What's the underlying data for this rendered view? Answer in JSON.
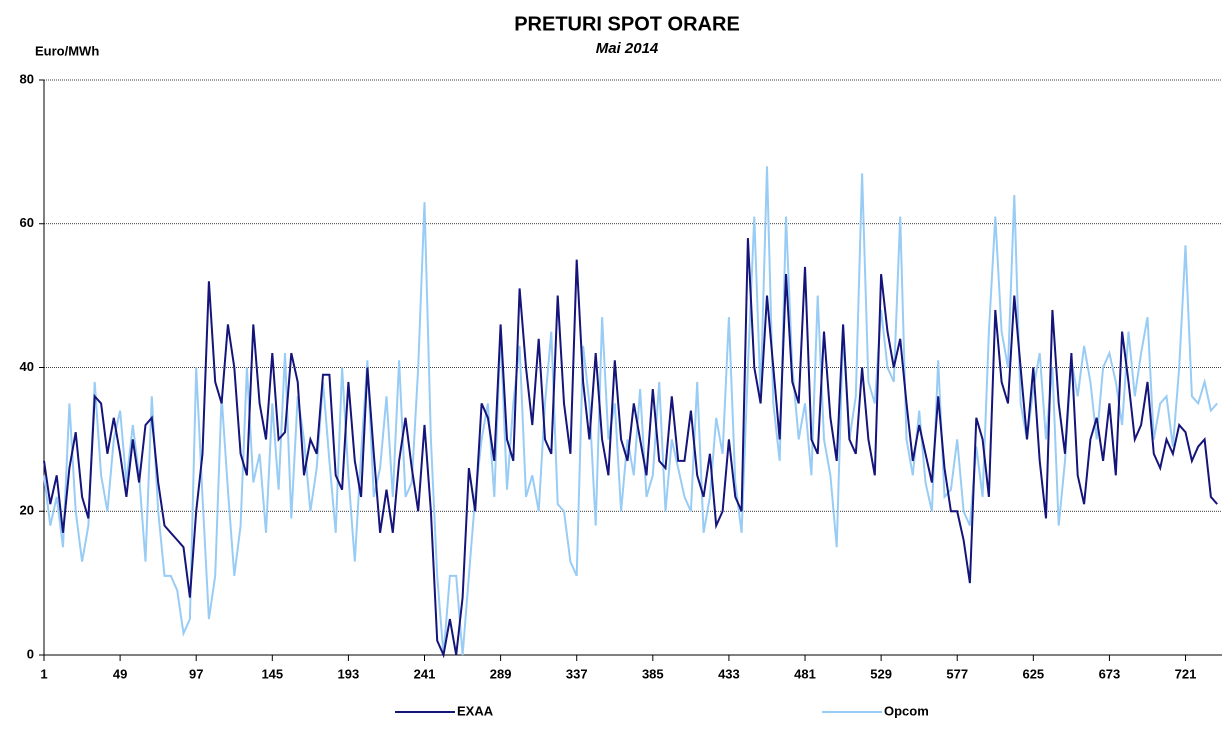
{
  "chart_data": {
    "type": "line",
    "title": "PRETURI SPOT ORARE",
    "subtitle": "Mai  2014",
    "y_label": "Euro/MWh",
    "x": [
      1,
      5,
      9,
      13,
      17,
      21,
      25,
      29,
      33,
      37,
      41,
      45,
      49,
      53,
      57,
      61,
      65,
      69,
      73,
      77,
      81,
      85,
      89,
      93,
      97,
      101,
      105,
      109,
      113,
      117,
      121,
      125,
      129,
      133,
      137,
      141,
      145,
      149,
      153,
      157,
      161,
      165,
      169,
      173,
      177,
      181,
      185,
      189,
      193,
      197,
      201,
      205,
      209,
      213,
      217,
      221,
      225,
      229,
      233,
      237,
      241,
      245,
      249,
      253,
      257,
      261,
      265,
      269,
      273,
      277,
      281,
      285,
      289,
      293,
      297,
      301,
      305,
      309,
      313,
      317,
      321,
      325,
      329,
      333,
      337,
      341,
      345,
      349,
      353,
      357,
      361,
      365,
      369,
      373,
      377,
      381,
      385,
      389,
      393,
      397,
      401,
      405,
      409,
      413,
      417,
      421,
      425,
      429,
      433,
      437,
      441,
      445,
      449,
      453,
      457,
      461,
      465,
      469,
      473,
      477,
      481,
      485,
      489,
      493,
      497,
      501,
      505,
      509,
      513,
      517,
      521,
      525,
      529,
      533,
      537,
      541,
      545,
      549,
      553,
      557,
      561,
      565,
      569,
      573,
      577,
      581,
      585,
      589,
      593,
      597,
      601,
      605,
      609,
      613,
      617,
      621,
      625,
      629,
      633,
      637,
      641,
      645,
      649,
      653,
      657,
      661,
      665,
      669,
      673,
      677,
      681,
      685,
      689,
      693,
      697,
      701,
      705,
      709,
      713,
      717,
      721,
      725,
      729,
      733,
      737,
      741
    ],
    "series": [
      {
        "name": "EXAA",
        "color": "#14147a",
        "values": [
          27,
          21,
          25,
          17,
          26,
          31,
          22,
          19,
          36,
          35,
          28,
          33,
          28,
          22,
          30,
          24,
          32,
          33,
          24,
          18,
          17,
          16,
          15,
          8,
          20,
          28,
          52,
          38,
          35,
          46,
          40,
          28,
          25,
          46,
          35,
          30,
          42,
          30,
          31,
          42,
          38,
          25,
          30,
          28,
          39,
          39,
          25,
          23,
          38,
          27,
          22,
          40,
          28,
          17,
          23,
          17,
          27,
          33,
          26,
          20,
          32,
          20,
          2,
          0,
          5,
          0,
          8,
          26,
          20,
          35,
          33,
          27,
          46,
          30,
          27,
          51,
          40,
          32,
          44,
          30,
          28,
          50,
          35,
          28,
          55,
          38,
          30,
          42,
          30,
          25,
          41,
          30,
          27,
          35,
          30,
          25,
          37,
          27,
          26,
          36,
          27,
          27,
          34,
          25,
          22,
          28,
          18,
          20,
          30,
          22,
          20,
          58,
          40,
          35,
          50,
          40,
          30,
          53,
          38,
          35,
          54,
          30,
          28,
          45,
          33,
          27,
          46,
          30,
          28,
          40,
          30,
          25,
          53,
          45,
          40,
          44,
          35,
          27,
          32,
          28,
          24,
          36,
          26,
          20,
          20,
          16,
          10,
          33,
          30,
          22,
          48,
          38,
          35,
          50,
          40,
          30,
          40,
          27,
          19,
          48,
          35,
          28,
          42,
          25,
          21,
          30,
          33,
          27,
          35,
          25,
          45,
          38,
          30,
          32,
          38,
          28,
          26,
          30,
          28,
          32,
          31,
          27,
          29,
          30,
          22,
          21
        ]
      },
      {
        "name": "Opcom",
        "color": "#99ccf5",
        "values": [
          25,
          18,
          22,
          15,
          35,
          20,
          13,
          18,
          38,
          25,
          20,
          30,
          34,
          24,
          32,
          25,
          13,
          36,
          20,
          11,
          11,
          9,
          3,
          5,
          40,
          22,
          5,
          11,
          36,
          23,
          11,
          18,
          40,
          24,
          28,
          17,
          35,
          23,
          42,
          19,
          36,
          30,
          20,
          26,
          38,
          27,
          17,
          40,
          25,
          13,
          28,
          41,
          22,
          26,
          36,
          22,
          41,
          22,
          24,
          40,
          63,
          30,
          11,
          0,
          11,
          11,
          0,
          11,
          22,
          30,
          35,
          22,
          45,
          23,
          35,
          43,
          22,
          25,
          20,
          35,
          45,
          21,
          20,
          13,
          11,
          43,
          35,
          18,
          47,
          30,
          35,
          20,
          30,
          25,
          37,
          22,
          25,
          38,
          20,
          30,
          26,
          22,
          20,
          38,
          17,
          22,
          33,
          28,
          47,
          24,
          17,
          40,
          61,
          36,
          68,
          35,
          27,
          61,
          40,
          30,
          35,
          25,
          50,
          30,
          25,
          15,
          45,
          30,
          36,
          67,
          38,
          35,
          48,
          40,
          38,
          61,
          30,
          25,
          34,
          24,
          20,
          41,
          22,
          23,
          30,
          20,
          18,
          29,
          22,
          45,
          61,
          45,
          40,
          64,
          35,
          30,
          37,
          42,
          30,
          40,
          18,
          27,
          41,
          36,
          43,
          38,
          30,
          40,
          42,
          38,
          32,
          45,
          36,
          42,
          47,
          30,
          35,
          36,
          29,
          40,
          57,
          36,
          35,
          38,
          34,
          35
        ]
      }
    ],
    "xlim": [
      1,
      744
    ],
    "xticks": [
      1,
      49,
      97,
      145,
      193,
      241,
      289,
      337,
      385,
      433,
      481,
      529,
      577,
      625,
      673,
      721
    ],
    "ylim": [
      0,
      80
    ],
    "yticks": [
      0,
      20,
      40,
      60,
      80
    ],
    "grid": true,
    "legend": "bottom"
  }
}
